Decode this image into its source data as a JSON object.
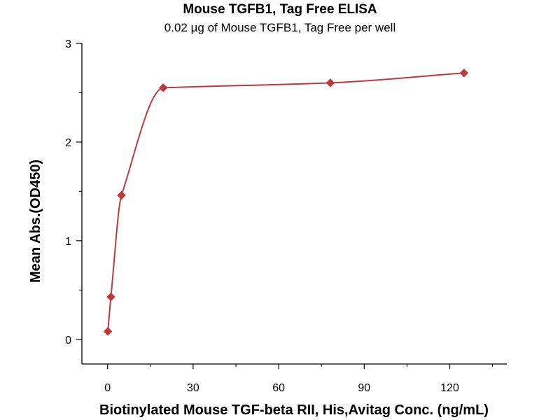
{
  "chart_data": {
    "type": "scatter",
    "title": "Mouse TGFB1, Tag Free ELISA",
    "subtitle": "0.02 µg of Mouse TGFB1, Tag Free per well",
    "xlabel": "Biotinylated Mouse TGF-beta RII, His,Avitag Conc. (ng/mL)",
    "ylabel": "Mean Abs.(OD450)",
    "xlim": [
      -9,
      140
    ],
    "ylim": [
      -0.25,
      3
    ],
    "xticks": [
      0,
      30,
      60,
      90,
      120
    ],
    "yticks": [
      0,
      1,
      2,
      3
    ],
    "grid": false,
    "legend": "none",
    "series": [
      {
        "x": [
          0.12,
          1.17,
          4.88,
          19.53,
          78.13,
          125
        ],
        "y": [
          0.08,
          0.43,
          1.46,
          2.55,
          2.6,
          2.7
        ],
        "color": "#c0393b",
        "marker": "diamond",
        "fit": "curve"
      }
    ]
  }
}
